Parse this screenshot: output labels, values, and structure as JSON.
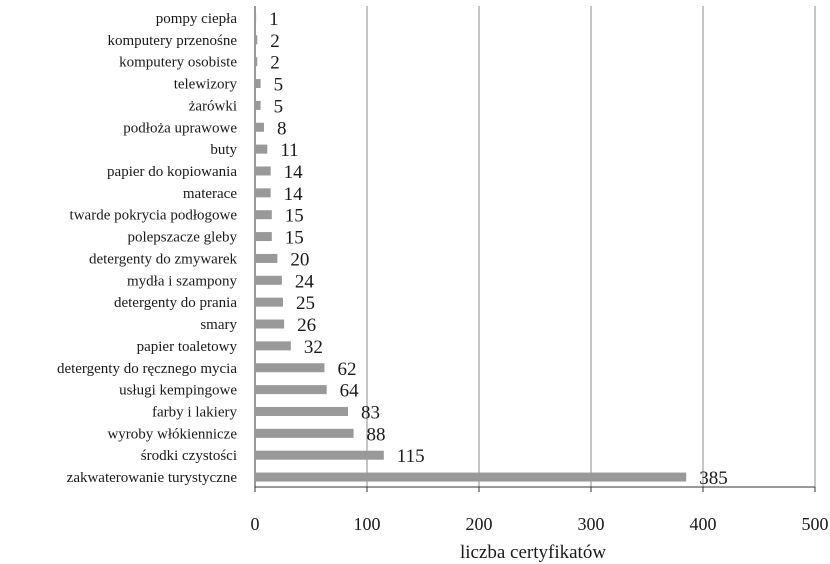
{
  "chart_data": {
    "type": "bar",
    "orientation": "horizontal",
    "categories": [
      "pompy ciepła",
      "komputery przenośne",
      "komputery osobiste",
      "telewizory",
      "żarówki",
      "podłoża uprawowe",
      "buty",
      "papier do kopiowania",
      "materace",
      "twarde pokrycia podłogowe",
      "polepszacze gleby",
      "detergenty do zmywarek",
      "mydła i szampony",
      "detergenty do prania",
      "smary",
      "papier toaletowy",
      "detergenty do ręcznego mycia",
      "usługi kempingowe",
      "farby i lakiery",
      "wyroby włókiennicze",
      "środki czystości",
      "zakwaterowanie turystyczne"
    ],
    "values": [
      1,
      2,
      2,
      5,
      5,
      8,
      11,
      14,
      14,
      15,
      15,
      20,
      24,
      25,
      26,
      32,
      62,
      64,
      83,
      88,
      115,
      385
    ],
    "data_labels": [
      "1",
      "2",
      "2",
      "5",
      "5",
      "8",
      "11",
      "14",
      "14",
      "15",
      "15",
      "20",
      "24",
      "25",
      "26",
      "32",
      "62",
      "64",
      "83",
      "88",
      "115",
      "385"
    ],
    "xlabel": "liczba certyfikatów",
    "xlim": [
      0,
      500
    ],
    "x_ticks": [
      0,
      100,
      200,
      300,
      400,
      500
    ],
    "x_tick_labels": [
      "0",
      "100",
      "200",
      "300",
      "400",
      "500"
    ],
    "grid": "vertical",
    "legend": "none",
    "colors": {
      "bar": "#999999",
      "grid": "#8c8c8c",
      "text": "#1a1a1a"
    }
  }
}
